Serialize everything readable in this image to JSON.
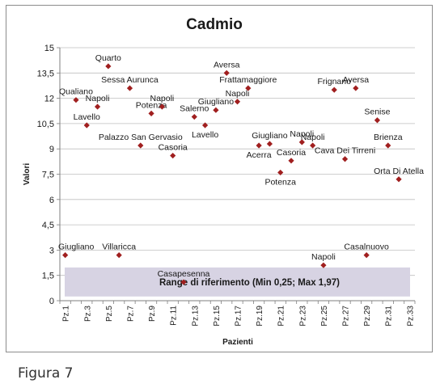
{
  "chart_data": {
    "type": "scatter",
    "title": "Cadmio",
    "xlabel": "Pazienti",
    "ylabel": "Valori",
    "ylim": [
      0,
      15
    ],
    "yticks": [
      "0",
      "1,5",
      "3",
      "4,5",
      "6",
      "7,5",
      "9",
      "10,5",
      "12",
      "13,5",
      "15"
    ],
    "ytick_values": [
      0,
      1.5,
      3,
      4.5,
      6,
      7.5,
      9,
      10.5,
      12,
      13.5,
      15
    ],
    "x_categories": [
      "Pz.1",
      "Pz.2",
      "Pz.3",
      "Pz.4",
      "Pz.5",
      "Pz.6",
      "Pz.7",
      "Pz.8",
      "Pz.9",
      "Pz.10",
      "Pz.11",
      "Pz.12",
      "Pz.13",
      "Pz.14",
      "Pz.15",
      "Pz.16",
      "Pz.17",
      "Pz.18",
      "Pz.19",
      "Pz.20",
      "Pz.21",
      "Pz.22",
      "Pz.23",
      "Pz.24",
      "Pz.25",
      "Pz.26",
      "Pz.27",
      "Pz.28",
      "Pz.29",
      "Pz.30",
      "Pz.31",
      "Pz.32",
      "Pz.33"
    ],
    "x_tick_labels": [
      "Pz.1",
      "Pz.3",
      "Pz.5",
      "Pz.7",
      "Pz.9",
      "Pz.11",
      "Pz.13",
      "Pz.15",
      "Pz.17",
      "Pz.19",
      "Pz.21",
      "Pz.23",
      "Pz.25",
      "Pz.27",
      "Pz.29",
      "Pz.31",
      "Pz.33"
    ],
    "marker_color": "#a01f1f",
    "reference_range": {
      "min": 0.25,
      "max": 1.97,
      "label": "Range di riferimento (Min 0,25; Max 1,97)",
      "color": "#d7d3e3"
    },
    "points": [
      {
        "x": "Pz.1",
        "y": 2.7,
        "label": "Giugliano",
        "label_pos": "above"
      },
      {
        "x": "Pz.2",
        "y": 11.9,
        "label": "Qualiano",
        "label_pos": "above"
      },
      {
        "x": "Pz.3",
        "y": 10.4,
        "label": "Lavello",
        "label_pos": "above"
      },
      {
        "x": "Pz.4",
        "y": 11.5,
        "label": "Napoli",
        "label_pos": "above"
      },
      {
        "x": "Pz.5",
        "y": 13.9,
        "label": "Quarto",
        "label_pos": "above"
      },
      {
        "x": "Pz.6",
        "y": 2.7,
        "label": "Villaricca",
        "label_pos": "above"
      },
      {
        "x": "Pz.7",
        "y": 12.6,
        "label": "Sessa Aurunca",
        "label_pos": "above"
      },
      {
        "x": "Pz.8",
        "y": 9.2,
        "label": "Palazzo San Gervasio",
        "label_pos": "above"
      },
      {
        "x": "Pz.9",
        "y": 11.1,
        "label": "Potenza",
        "label_pos": "above"
      },
      {
        "x": "Pz.10",
        "y": 11.5,
        "label": "Napoli",
        "label_pos": "above"
      },
      {
        "x": "Pz.11",
        "y": 8.6,
        "label": "Casoria",
        "label_pos": "above"
      },
      {
        "x": "Pz.12",
        "y": 1.1,
        "label": "Casapesenna",
        "label_pos": "above"
      },
      {
        "x": "Pz.13",
        "y": 10.9,
        "label": "Salerno",
        "label_pos": "above"
      },
      {
        "x": "Pz.14",
        "y": 10.4,
        "label": "Lavello",
        "label_pos": "below"
      },
      {
        "x": "Pz.15",
        "y": 11.3,
        "label": "Giugliano",
        "label_pos": "above"
      },
      {
        "x": "Pz.16",
        "y": 13.5,
        "label": "Aversa",
        "label_pos": "above"
      },
      {
        "x": "Pz.17",
        "y": 11.8,
        "label": "Napoli",
        "label_pos": "above"
      },
      {
        "x": "Pz.18",
        "y": 12.6,
        "label": "Frattamaggiore",
        "label_pos": "above"
      },
      {
        "x": "Pz.19",
        "y": 9.2,
        "label": "Acerra",
        "label_pos": "below"
      },
      {
        "x": "Pz.20",
        "y": 9.3,
        "label": "Giugliano",
        "label_pos": "above"
      },
      {
        "x": "Pz.21",
        "y": 7.6,
        "label": "Potenza",
        "label_pos": "below"
      },
      {
        "x": "Pz.22",
        "y": 8.3,
        "label": "Casoria",
        "label_pos": "above"
      },
      {
        "x": "Pz.23",
        "y": 9.4,
        "label": "Napoli",
        "label_pos": "above"
      },
      {
        "x": "Pz.24",
        "y": 9.2,
        "label": "Napoli",
        "label_pos": "above"
      },
      {
        "x": "Pz.25",
        "y": 2.1,
        "label": "Napoli",
        "label_pos": "above"
      },
      {
        "x": "Pz.26",
        "y": 12.5,
        "label": "Frignano",
        "label_pos": "above"
      },
      {
        "x": "Pz.27",
        "y": 8.4,
        "label": "Cava Dei Tirreni",
        "label_pos": "above"
      },
      {
        "x": "Pz.28",
        "y": 12.6,
        "label": "Aversa",
        "label_pos": "above"
      },
      {
        "x": "Pz.29",
        "y": 2.7,
        "label": "Casalnuovo",
        "label_pos": "above"
      },
      {
        "x": "Pz.30",
        "y": 10.7,
        "label": "Senise",
        "label_pos": "above"
      },
      {
        "x": "Pz.31",
        "y": 9.2,
        "label": "Brienza",
        "label_pos": "above"
      },
      {
        "x": "Pz.32",
        "y": 7.2,
        "label": "Orta Di Atella",
        "label_pos": "above"
      }
    ]
  },
  "caption": "Figura 7"
}
